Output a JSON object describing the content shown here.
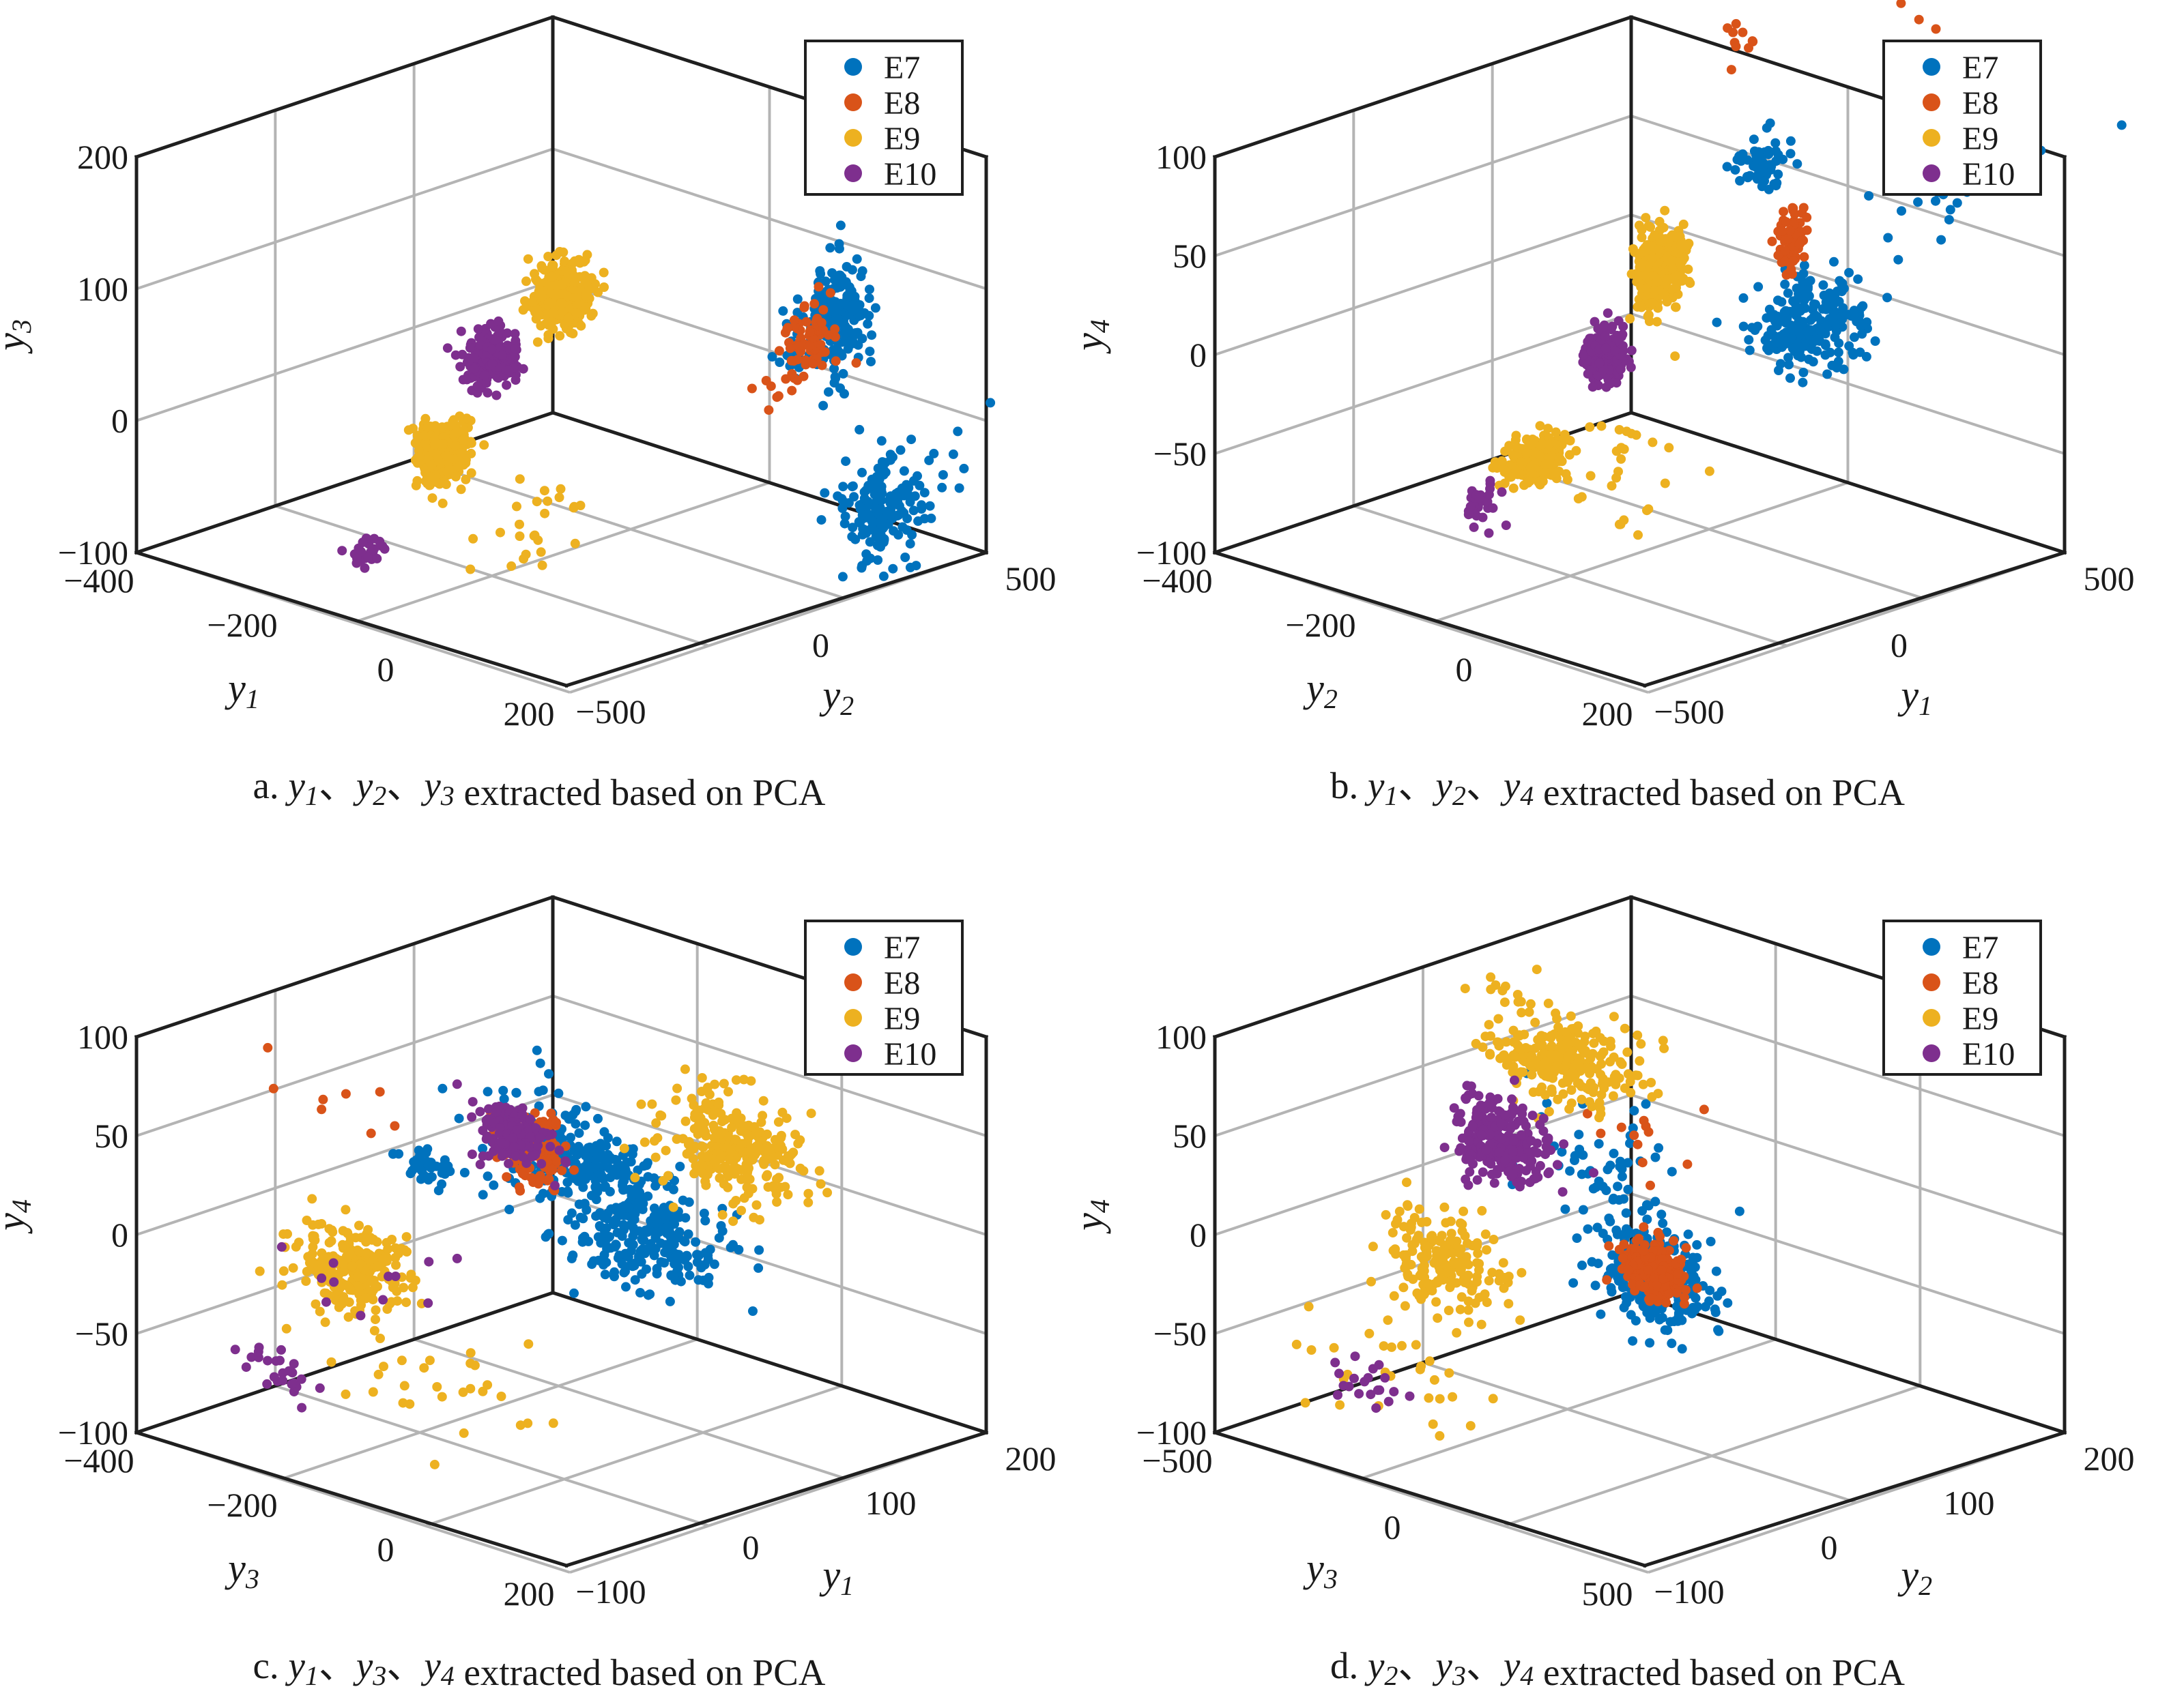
{
  "colors": {
    "E7": "#0072BD",
    "E8": "#D95319",
    "E9": "#EDB120",
    "E10": "#7E2F8E"
  },
  "legend": [
    "E7",
    "E8",
    "E9",
    "E10"
  ],
  "chart_data": [
    {
      "id": "a",
      "type": "scatter",
      "view": "3d",
      "xlabel": "y",
      "xlabel_sub": "1",
      "ylabel": "y",
      "ylabel_sub": "2",
      "zlabel": "y",
      "zlabel_sub": "3",
      "xticks": [
        "−400",
        "−200",
        "0",
        "200"
      ],
      "yticks": [
        "−500",
        "0",
        "500"
      ],
      "zticks": [
        "−100",
        "0",
        "100",
        "200"
      ],
      "xlim": [
        -400,
        200
      ],
      "ylim": [
        -500,
        500
      ],
      "zlim": [
        -100,
        200
      ],
      "caption": {
        "prefix": "a. ",
        "terms": [
          [
            "y",
            "1"
          ],
          [
            "y",
            "2"
          ],
          [
            "y",
            "3"
          ]
        ],
        "sep": "、",
        "suffix": " extracted based on PCA"
      },
      "series": [
        {
          "name": "E7",
          "clusters": [
            [
              0,
              470,
              110,
              200,
              35,
              40
            ],
            [
              0,
              380,
              75,
              30,
              20,
              25
            ],
            [
              0,
              580,
              -25,
              160,
              40,
              40
            ],
            [
              0,
              700,
              15,
              12,
              60,
              40
            ]
          ]
        },
        {
          "name": "E8",
          "clusters": [
            [
              0,
              410,
              85,
              80,
              25,
              30
            ],
            [
              0,
              340,
              45,
              8,
              20,
              15
            ]
          ]
        },
        {
          "name": "E9",
          "clusters": [
            [
              -100,
              0,
              95,
              300,
              30,
              25
            ],
            [
              -270,
              0,
              5,
              240,
              30,
              25
            ],
            [
              -150,
              0,
              -80,
              25,
              60,
              30
            ]
          ]
        },
        {
          "name": "E10",
          "clusters": [
            [
              -200,
              0,
              65,
              250,
              25,
              20
            ],
            [
              -380,
              0,
              -50,
              25,
              20,
              15
            ]
          ]
        }
      ]
    },
    {
      "id": "b",
      "type": "scatter",
      "view": "3d",
      "xlabel": "y",
      "xlabel_sub": "2",
      "ylabel": "y",
      "ylabel_sub": "1",
      "zlabel": "y",
      "zlabel_sub": "4",
      "xticks": [
        "−400",
        "−200",
        "0",
        "200"
      ],
      "yticks": [
        "−500",
        "0",
        "500"
      ],
      "zticks": [
        "−100",
        "−50",
        "0",
        "50",
        "100"
      ],
      "xlim": [
        -400,
        200
      ],
      "ylim": [
        -500,
        500
      ],
      "zlim": [
        -100,
        100
      ],
      "caption": {
        "prefix": "b. ",
        "terms": [
          [
            "y",
            "1"
          ],
          [
            "y",
            "2"
          ],
          [
            "y",
            "4"
          ]
        ],
        "sep": "、",
        "suffix": " extracted based on PCA"
      },
      "series": [
        {
          "name": "E7",
          "clusters": [
            [
              0,
              130,
              95,
              60,
              25,
              15
            ],
            [
              0,
              230,
              20,
              230,
              60,
              20
            ],
            [
              0,
              560,
              115,
              40,
              60,
              35
            ],
            [
              0,
              700,
              150,
              8,
              80,
              30
            ]
          ]
        },
        {
          "name": "E8",
          "clusters": [
            [
              0,
              190,
              60,
              80,
              15,
              15
            ],
            [
              0,
              80,
              150,
              10,
              20,
              15
            ],
            [
              0,
              500,
              190,
              6,
              60,
              30
            ]
          ]
        },
        {
          "name": "E9",
          "clusters": [
            [
              -70,
              0,
              40,
              300,
              25,
              20
            ],
            [
              -250,
              0,
              -35,
              200,
              35,
              12
            ],
            [
              -120,
              0,
              -60,
              25,
              60,
              25
            ]
          ]
        },
        {
          "name": "E10",
          "clusters": [
            [
              -150,
              0,
              5,
              260,
              20,
              12
            ],
            [
              -330,
              0,
              -50,
              30,
              20,
              12
            ]
          ]
        }
      ]
    },
    {
      "id": "c",
      "type": "scatter",
      "view": "3d",
      "xlabel": "y",
      "xlabel_sub": "3",
      "ylabel": "y",
      "ylabel_sub": "1",
      "zlabel": "y",
      "zlabel_sub": "4",
      "xticks": [
        "−400",
        "−200",
        "0",
        "200"
      ],
      "yticks": [
        "−100",
        "0",
        "100",
        "200"
      ],
      "zticks": [
        "−100",
        "−50",
        "0",
        "50",
        "100"
      ],
      "xlim": [
        -400,
        200
      ],
      "ylim": [
        -100,
        200
      ],
      "zlim": [
        -100,
        100
      ],
      "caption": {
        "prefix": "c. ",
        "terms": [
          [
            "y",
            "1"
          ],
          [
            "y",
            "3"
          ],
          [
            "y",
            "4"
          ]
        ],
        "sep": "、",
        "suffix": " extracted based on PCA"
      },
      "series": [
        {
          "name": "E7",
          "clusters": [
            [
              0,
              20,
              15,
              160,
              35,
              15
            ],
            [
              0,
              60,
              -10,
              260,
              40,
              25
            ],
            [
              -200,
              0,
              35,
              40,
              20,
              10
            ],
            [
              -20,
              0,
              30,
              60,
              40,
              40
            ]
          ]
        },
        {
          "name": "E8",
          "clusters": [
            [
              0,
              -20,
              15,
              140,
              20,
              18
            ],
            [
              -330,
              0,
              85,
              8,
              30,
              15
            ]
          ]
        },
        {
          "name": "E9",
          "clusters": [
            [
              0,
              120,
              50,
              280,
              35,
              25
            ],
            [
              -300,
              0,
              -5,
              240,
              30,
              20
            ],
            [
              -150,
              0,
              -80,
              30,
              80,
              25
            ]
          ]
        },
        {
          "name": "E10",
          "clusters": [
            [
              0,
              -30,
              20,
              140,
              20,
              15
            ],
            [
              -400,
              0,
              -45,
              25,
              15,
              12
            ],
            [
              -250,
              0,
              -25,
              12,
              60,
              25
            ]
          ]
        }
      ]
    },
    {
      "id": "d",
      "type": "scatter",
      "view": "3d",
      "xlabel": "y",
      "xlabel_sub": "3",
      "ylabel": "y",
      "ylabel_sub": "2",
      "zlabel": "y",
      "zlabel_sub": "4",
      "xticks": [
        "−500",
        "0",
        "500"
      ],
      "yticks": [
        "−100",
        "0",
        "100",
        "200"
      ],
      "zticks": [
        "−100",
        "−50",
        "0",
        "50",
        "100"
      ],
      "xlim": [
        -500,
        500
      ],
      "ylim": [
        -100,
        200
      ],
      "zlim": [
        -100,
        100
      ],
      "caption": {
        "prefix": "d. ",
        "terms": [
          [
            "y",
            "2"
          ],
          [
            "y",
            "3"
          ],
          [
            "y",
            "4"
          ]
        ],
        "sep": "、",
        "suffix": " extracted based on PCA"
      },
      "series": [
        {
          "name": "E7",
          "clusters": [
            [
              0,
              60,
              -20,
              280,
              30,
              25
            ],
            [
              0,
              20,
              25,
              60,
              50,
              30
            ]
          ]
        },
        {
          "name": "E8",
          "clusters": [
            [
              0,
              60,
              -15,
              200,
              20,
              15
            ],
            [
              0,
              40,
              40,
              12,
              40,
              25
            ]
          ]
        },
        {
          "name": "E9",
          "clusters": [
            [
              -20,
              0,
              80,
              280,
              40,
              25
            ],
            [
              -300,
              0,
              -5,
              180,
              35,
              25
            ],
            [
              -450,
              0,
              -50,
              30,
              60,
              30
            ]
          ]
        },
        {
          "name": "E10",
          "clusters": [
            [
              -150,
              0,
              45,
              260,
              25,
              20
            ],
            [
              -480,
              0,
              -55,
              20,
              20,
              12
            ]
          ]
        }
      ]
    }
  ]
}
